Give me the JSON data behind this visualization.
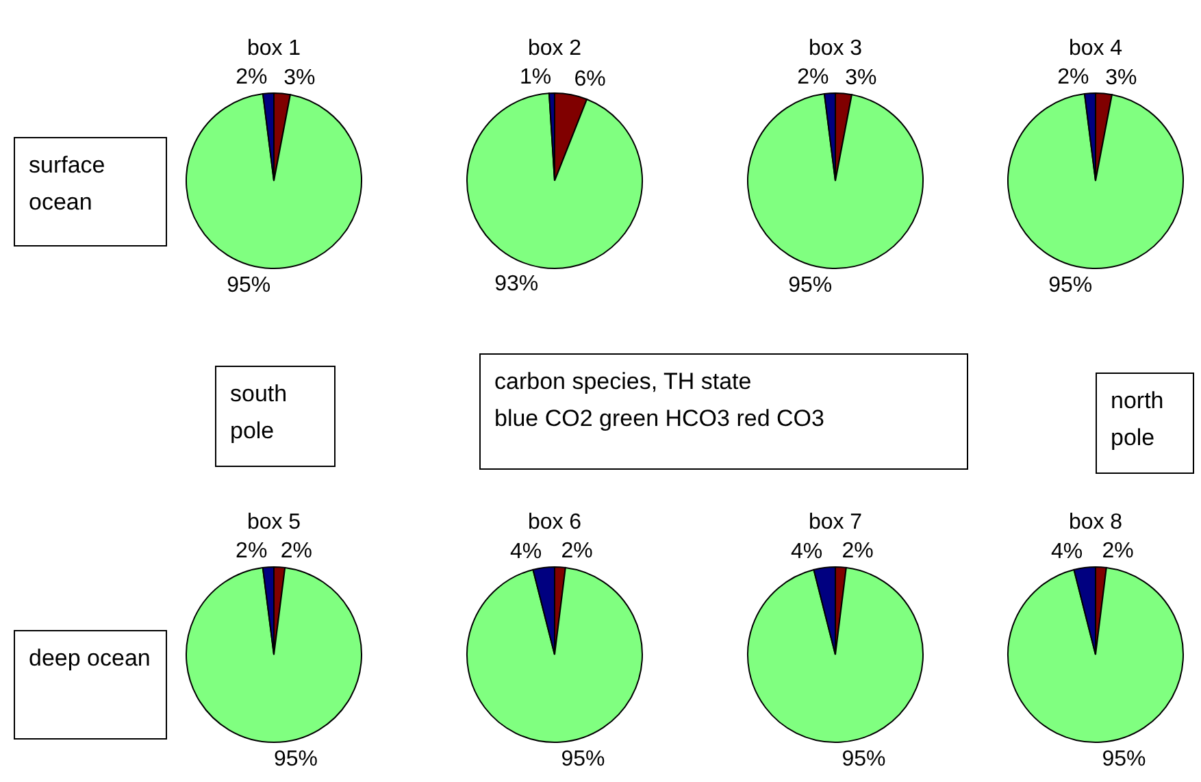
{
  "chart_data": [
    {
      "type": "pie",
      "title": "box 1",
      "categories": [
        null,
        null,
        null
      ],
      "values": [
        3,
        95,
        2
      ],
      "colors": [
        "#800000",
        "#80ff80",
        "#000080"
      ],
      "value_labels": [
        "3%",
        "95%",
        "2%"
      ]
    },
    {
      "type": "pie",
      "title": "box 2",
      "categories": [
        null,
        null,
        null
      ],
      "values": [
        6,
        93,
        1
      ],
      "colors": [
        "#800000",
        "#80ff80",
        "#000080"
      ],
      "value_labels": [
        "6%",
        "93%",
        "1%"
      ]
    },
    {
      "type": "pie",
      "title": "box 3",
      "categories": [
        null,
        null,
        null
      ],
      "values": [
        3,
        95,
        2
      ],
      "colors": [
        "#800000",
        "#80ff80",
        "#000080"
      ],
      "value_labels": [
        "3%",
        "95%",
        "2%"
      ]
    },
    {
      "type": "pie",
      "title": "box 4",
      "categories": [
        null,
        null,
        null
      ],
      "values": [
        3,
        95,
        2
      ],
      "colors": [
        "#800000",
        "#80ff80",
        "#000080"
      ],
      "value_labels": [
        "3%",
        "95%",
        "2%"
      ]
    },
    {
      "type": "pie",
      "title": "box 5",
      "categories": [
        null,
        null,
        null
      ],
      "values": [
        2,
        95,
        2
      ],
      "colors": [
        "#800000",
        "#80ff80",
        "#000080"
      ],
      "value_labels": [
        "2%",
        "95%",
        "2%"
      ]
    },
    {
      "type": "pie",
      "title": "box 6",
      "categories": [
        null,
        null,
        null
      ],
      "values": [
        2,
        95,
        4
      ],
      "colors": [
        "#800000",
        "#80ff80",
        "#000080"
      ],
      "value_labels": [
        "2%",
        "95%",
        "4%"
      ]
    },
    {
      "type": "pie",
      "title": "box 7",
      "categories": [
        null,
        null,
        null
      ],
      "values": [
        2,
        95,
        4
      ],
      "colors": [
        "#800000",
        "#80ff80",
        "#000080"
      ],
      "value_labels": [
        "2%",
        "95%",
        "4%"
      ]
    },
    {
      "type": "pie",
      "title": "box 8",
      "categories": [
        null,
        null,
        null
      ],
      "values": [
        2,
        95,
        4
      ],
      "colors": [
        "#800000",
        "#80ff80",
        "#000080"
      ],
      "value_labels": [
        "2%",
        "95%",
        "4%"
      ]
    },
    {
      "type": "other",
      "annotations": [
        "surface ocean"
      ]
    },
    {
      "type": "other",
      "annotations": [
        "south pole"
      ]
    },
    {
      "type": "other",
      "annotations": [
        "carbon species, TH state",
        "blue CO2 green HCO3 red CO3"
      ]
    },
    {
      "type": "other",
      "annotations": [
        "north pole"
      ]
    },
    {
      "type": "other",
      "annotations": [
        "deep ocean"
      ]
    }
  ]
}
